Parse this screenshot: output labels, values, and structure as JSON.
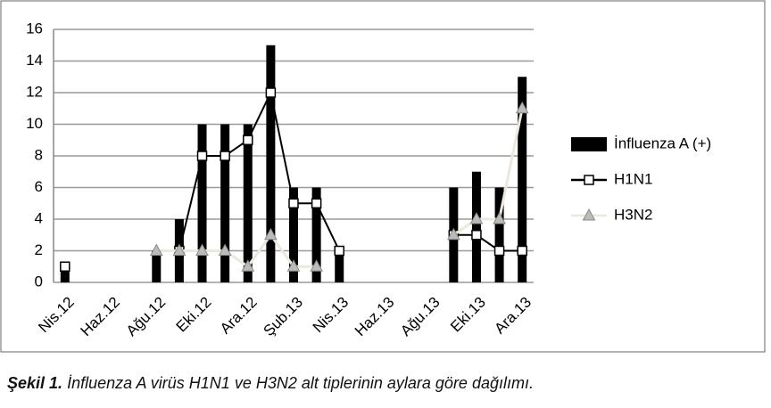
{
  "chart_data": {
    "type": "bar",
    "categories": [
      "Nis.12",
      null,
      "Haz.12",
      null,
      "Ağu.12",
      null,
      "Eki.12",
      null,
      "Ara.12",
      null,
      "Şub.13",
      null,
      "Nis.13",
      null,
      "Haz.13",
      null,
      "Ağu.13",
      null,
      "Eki.13",
      null,
      "Ara.13"
    ],
    "series": [
      {
        "name": "İnfluenza A (+)",
        "type": "bar",
        "color": "#000000",
        "values": [
          1,
          null,
          null,
          null,
          2,
          4,
          10,
          10,
          10,
          15,
          6,
          6,
          2,
          null,
          null,
          null,
          null,
          6,
          7,
          6,
          13
        ]
      },
      {
        "name": "H1N1",
        "type": "line",
        "marker": "square",
        "color": "#000000",
        "values": [
          1,
          null,
          null,
          null,
          null,
          2,
          8,
          8,
          9,
          12,
          5,
          5,
          2,
          null,
          null,
          null,
          null,
          3,
          3,
          2,
          2
        ]
      },
      {
        "name": "H3N2",
        "type": "line",
        "marker": "triangle",
        "color": "#ece8dc",
        "values": [
          null,
          null,
          null,
          null,
          2,
          2,
          2,
          2,
          1,
          3,
          1,
          1,
          null,
          null,
          null,
          null,
          null,
          3,
          4,
          4,
          11
        ]
      }
    ],
    "ylim": [
      0,
      16
    ],
    "yticks": [
      0,
      2,
      4,
      6,
      8,
      10,
      12,
      14,
      16
    ],
    "grid": true,
    "legend": "right"
  },
  "caption": {
    "label": "Şekil 1.",
    "text": "İnfluenza A virüs H1N1 ve H3N2 alt tiplerinin aylara göre dağılımı."
  }
}
